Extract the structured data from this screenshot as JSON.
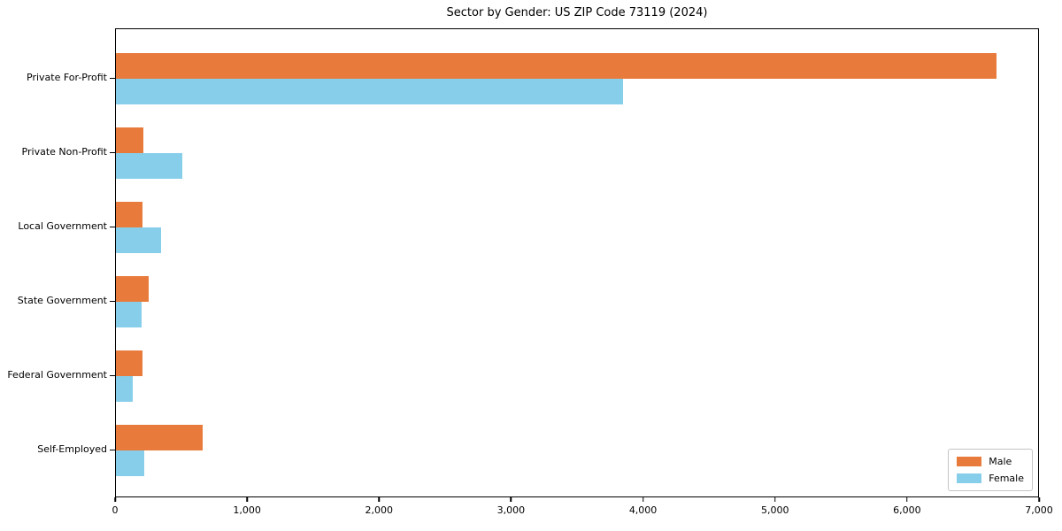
{
  "chart_data": {
    "type": "bar",
    "orientation": "horizontal",
    "title": "Sector by Gender: US ZIP Code 73119 (2024)",
    "categories": [
      "Private For-Profit",
      "Private Non-Profit",
      "Local Government",
      "State Government",
      "Federal Government",
      "Self-Employed"
    ],
    "series": [
      {
        "name": "Male",
        "color": "#e87b3c",
        "values": [
          6670,
          210,
          200,
          250,
          200,
          660
        ]
      },
      {
        "name": "Female",
        "color": "#87ceeb",
        "values": [
          3840,
          500,
          340,
          195,
          130,
          215
        ]
      }
    ],
    "xlabel": "",
    "ylabel": "",
    "xlim": [
      0,
      7000
    ],
    "x_ticks": [
      0,
      1000,
      2000,
      3000,
      4000,
      5000,
      6000,
      7000
    ],
    "x_tick_labels": [
      "0",
      "1,000",
      "2,000",
      "3,000",
      "4,000",
      "5,000",
      "6,000",
      "7,000"
    ],
    "grid": false,
    "legend_position": "lower right",
    "axis_color": "#000000",
    "background_color": "#ffffff"
  }
}
